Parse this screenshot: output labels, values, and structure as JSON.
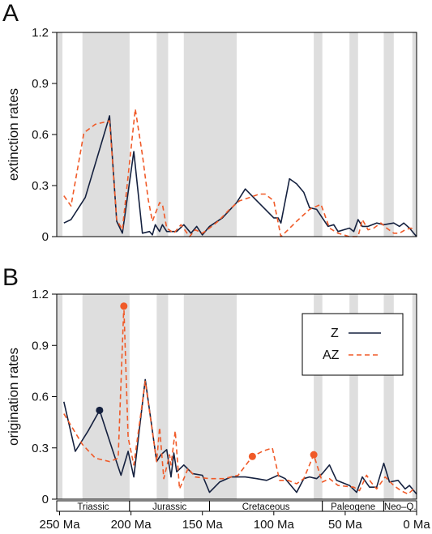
{
  "panels": [
    {
      "letter": "A"
    },
    {
      "letter": "B"
    }
  ],
  "chart_data": [
    {
      "type": "line",
      "panel": "A",
      "ylabel": "extinction rates",
      "xlim": [
        252,
        0
      ],
      "ylim": [
        0,
        1.2
      ],
      "yticks": [
        "0",
        "0.3",
        "0.6",
        "0.9",
        "1.2"
      ],
      "grid": false,
      "stage_shading": true,
      "series": [
        {
          "name": "Z",
          "style": "solid",
          "color": "#15213f",
          "points": [
            [
              247,
              0.08
            ],
            [
              242,
              0.1
            ],
            [
              232,
              0.23
            ],
            [
              221,
              0.54
            ],
            [
              215,
              0.71
            ],
            [
              210,
              0.09
            ],
            [
              206,
              0.02
            ],
            [
              198,
              0.5
            ],
            [
              192,
              0.02
            ],
            [
              187,
              0.03
            ],
            [
              185,
              0.01
            ],
            [
              183,
              0.07
            ],
            [
              180,
              0.03
            ],
            [
              178,
              0.07
            ],
            [
              175,
              0.03
            ],
            [
              168,
              0.03
            ],
            [
              163,
              0.07
            ],
            [
              158,
              0.02
            ],
            [
              154,
              0.06
            ],
            [
              150,
              0.01
            ],
            [
              145,
              0.06
            ],
            [
              136,
              0.11
            ],
            [
              126,
              0.2
            ],
            [
              120,
              0.28
            ],
            [
              113,
              0.22
            ],
            [
              100,
              0.11
            ],
            [
              97,
              0.11
            ],
            [
              95,
              0.08
            ],
            [
              89,
              0.34
            ],
            [
              84,
              0.31
            ],
            [
              79,
              0.26
            ],
            [
              75,
              0.17
            ],
            [
              70,
              0.16
            ],
            [
              62,
              0.06
            ],
            [
              58,
              0.07
            ],
            [
              55,
              0.03
            ],
            [
              47,
              0.05
            ],
            [
              44,
              0.03
            ],
            [
              41,
              0.1
            ],
            [
              38,
              0.06
            ],
            [
              34,
              0.06
            ],
            [
              28,
              0.08
            ],
            [
              23,
              0.07
            ],
            [
              16,
              0.08
            ],
            [
              12,
              0.06
            ],
            [
              9,
              0.08
            ],
            [
              5,
              0.05
            ],
            [
              0,
              0.0
            ]
          ]
        },
        {
          "name": "AZ",
          "style": "dashed",
          "color": "#f05a28",
          "points": [
            [
              247,
              0.24
            ],
            [
              242,
              0.18
            ],
            [
              233,
              0.61
            ],
            [
              225,
              0.66
            ],
            [
              215,
              0.68
            ],
            [
              210,
              0.1
            ],
            [
              206,
              0.04
            ],
            [
              197,
              0.75
            ],
            [
              192,
              0.48
            ],
            [
              188,
              0.22
            ],
            [
              185,
              0.09
            ],
            [
              180,
              0.2
            ],
            [
              178,
              0.19
            ],
            [
              175,
              0.05
            ],
            [
              170,
              0.02
            ],
            [
              165,
              0.07
            ],
            [
              159,
              0.0
            ],
            [
              155,
              0.04
            ],
            [
              150,
              0.02
            ],
            [
              145,
              0.05
            ],
            [
              139,
              0.09
            ],
            [
              131,
              0.16
            ],
            [
              124,
              0.21
            ],
            [
              117,
              0.23
            ],
            [
              110,
              0.25
            ],
            [
              106,
              0.25
            ],
            [
              100,
              0.21
            ],
            [
              95,
              0.0
            ],
            [
              90,
              0.04
            ],
            [
              84,
              0.09
            ],
            [
              75,
              0.16
            ],
            [
              67,
              0.19
            ],
            [
              61,
              0.05
            ],
            [
              55,
              0.02
            ],
            [
              47,
              0.0
            ],
            [
              41,
              0.0
            ],
            [
              38,
              0.1
            ],
            [
              34,
              0.04
            ],
            [
              30,
              0.05
            ],
            [
              25,
              0.08
            ],
            [
              21,
              0.05
            ],
            [
              16,
              0.02
            ],
            [
              12,
              0.02
            ],
            [
              8,
              0.04
            ],
            [
              4,
              0.05
            ],
            [
              1,
              0.04
            ]
          ]
        }
      ]
    },
    {
      "type": "line",
      "panel": "B",
      "ylabel": "origination rates",
      "xlim": [
        252,
        0
      ],
      "ylim": [
        0,
        1.2
      ],
      "yticks": [
        "0",
        "0.3",
        "0.6",
        "0.9",
        "1.2"
      ],
      "xticks": [
        "250 Ma",
        "200 Ma",
        "150 Ma",
        "100 Ma",
        "50 Ma",
        "0 Ma"
      ],
      "xtick_values": [
        250,
        200,
        150,
        100,
        50,
        0
      ],
      "grid": false,
      "stage_shading": true,
      "legend": {
        "placement": "upper-right",
        "entries": [
          "Z",
          "AZ"
        ]
      },
      "periods": [
        {
          "name": "Triassic",
          "start": 252,
          "end": 201
        },
        {
          "name": "Jurassic",
          "start": 201,
          "end": 145
        },
        {
          "name": "Cretaceous",
          "start": 145,
          "end": 66
        },
        {
          "name": "Paleogene",
          "start": 66,
          "end": 23
        },
        {
          "name": "Neo–Q.",
          "start": 23,
          "end": 0
        }
      ],
      "series": [
        {
          "name": "Z",
          "style": "solid",
          "color": "#15213f",
          "points": [
            [
              247,
              0.57
            ],
            [
              239,
              0.28
            ],
            [
              230,
              0.4
            ],
            [
              222,
              0.52
            ],
            [
              213,
              0.29
            ],
            [
              207,
              0.14
            ],
            [
              202,
              0.28
            ],
            [
              198,
              0.13
            ],
            [
              190,
              0.7
            ],
            [
              182,
              0.22
            ],
            [
              179,
              0.26
            ],
            [
              175,
              0.29
            ],
            [
              172,
              0.13
            ],
            [
              170,
              0.27
            ],
            [
              168,
              0.16
            ],
            [
              163,
              0.2
            ],
            [
              157,
              0.15
            ],
            [
              150,
              0.14
            ],
            [
              145,
              0.04
            ],
            [
              138,
              0.1
            ],
            [
              130,
              0.13
            ],
            [
              120,
              0.13
            ],
            [
              112,
              0.12
            ],
            [
              105,
              0.11
            ],
            [
              97,
              0.14
            ],
            [
              92,
              0.12
            ],
            [
              84,
              0.04
            ],
            [
              79,
              0.12
            ],
            [
              75,
              0.13
            ],
            [
              70,
              0.12
            ],
            [
              66,
              0.15
            ],
            [
              61,
              0.2
            ],
            [
              56,
              0.11
            ],
            [
              47,
              0.08
            ],
            [
              42,
              0.04
            ],
            [
              38,
              0.13
            ],
            [
              33,
              0.07
            ],
            [
              28,
              0.07
            ],
            [
              23,
              0.21
            ],
            [
              19,
              0.1
            ],
            [
              13,
              0.11
            ],
            [
              8,
              0.06
            ],
            [
              5,
              0.08
            ],
            [
              0,
              0.03
            ]
          ]
        },
        {
          "name": "AZ",
          "style": "dashed",
          "color": "#f05a28",
          "points": [
            [
              247,
              0.5
            ],
            [
              234,
              0.32
            ],
            [
              225,
              0.24
            ],
            [
              215,
              0.22
            ],
            [
              209,
              0.24
            ],
            [
              205,
              1.13
            ],
            [
              202,
              0.36
            ],
            [
              198,
              0.2
            ],
            [
              190,
              0.69
            ],
            [
              182,
              0.22
            ],
            [
              180,
              0.42
            ],
            [
              177,
              0.12
            ],
            [
              173,
              0.26
            ],
            [
              172,
              0.2
            ],
            [
              169,
              0.4
            ],
            [
              166,
              0.06
            ],
            [
              160,
              0.18
            ],
            [
              155,
              0.13
            ],
            [
              145,
              0.12
            ],
            [
              135,
              0.12
            ],
            [
              125,
              0.14
            ],
            [
              115,
              0.25
            ],
            [
              108,
              0.28
            ],
            [
              101,
              0.3
            ],
            [
              96,
              0.11
            ],
            [
              90,
              0.11
            ],
            [
              84,
              0.09
            ],
            [
              79,
              0.12
            ],
            [
              72,
              0.26
            ],
            [
              66,
              0.1
            ],
            [
              61,
              0.12
            ],
            [
              55,
              0.08
            ],
            [
              44,
              0.07
            ],
            [
              40,
              0.05
            ],
            [
              35,
              0.14
            ],
            [
              32,
              0.1
            ],
            [
              28,
              0.06
            ],
            [
              22,
              0.13
            ],
            [
              16,
              0.08
            ],
            [
              11,
              0.05
            ],
            [
              6,
              0.03
            ],
            [
              2,
              0.06
            ]
          ]
        }
      ],
      "highlight_points": [
        {
          "series": "Z",
          "x": 222,
          "y": 0.52
        },
        {
          "series": "AZ",
          "x": 205,
          "y": 1.13
        },
        {
          "series": "AZ",
          "x": 115,
          "y": 0.25
        },
        {
          "series": "AZ",
          "x": 72,
          "y": 0.26
        }
      ]
    }
  ],
  "colors": {
    "shade": "#dedede",
    "z": "#15213f",
    "az": "#f05a28",
    "axis": "#000000"
  }
}
